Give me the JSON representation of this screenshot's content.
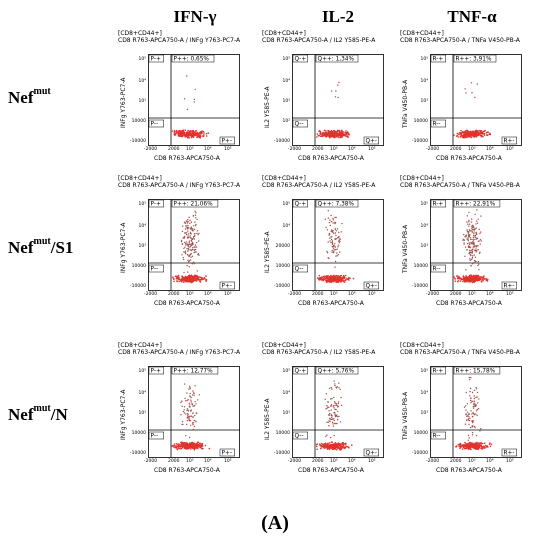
{
  "column_titles": [
    "IFN-γ",
    "IL-2",
    "TNF-α"
  ],
  "row_labels": [
    {
      "base": "Nef",
      "sup": "mut",
      "suffix": ""
    },
    {
      "base": "Nef",
      "sup": "mut",
      "suffix": "/S1"
    },
    {
      "base": "Nef",
      "sup": "mut",
      "suffix": "/N"
    }
  ],
  "figure_label": "(A)",
  "colors": {
    "dots_dense": "#e0332e",
    "dots_sparse": "#8a5a55",
    "gate": "#000000"
  },
  "chart_data": [
    {
      "type": "scatter",
      "row": "Nef mut",
      "column": "IFN-γ",
      "gate_header": "[CD8+CD44+]",
      "title": "CD8 R763-APCA750-A / INFg Y763-PC7-A",
      "xlabel": "CD8 R763-APCA750-A",
      "ylabel": "INFg Y763-PC7-A",
      "xticks": [
        "-2000",
        "2000",
        "10³",
        "10⁴",
        "10⁵"
      ],
      "yticks": [
        "10⁵",
        "10⁴",
        "10³",
        "10000",
        "-10000"
      ],
      "quadrants": {
        "upper_left": "P-+",
        "upper_right": "P++",
        "lower_left": "P--",
        "lower_right": "P+-"
      },
      "upper_right_value": "P++: 0,65%",
      "percent_positive": 0.65,
      "high_population": "low"
    },
    {
      "type": "scatter",
      "row": "Nef mut",
      "column": "IL-2",
      "gate_header": "[CD8+CD44+]",
      "title": "CD8 R763-APCA750-A / IL2 Y585-PE-A",
      "xlabel": "CD8 R763-APCA750-A",
      "ylabel": "IL2 Y585-PE-A",
      "xticks": [
        "-2000",
        "2000",
        "10³",
        "10⁴",
        "10⁵"
      ],
      "yticks": [
        "10⁵",
        "10⁴",
        "10³",
        "10²",
        "-10000"
      ],
      "quadrants": {
        "upper_left": "Q-+",
        "upper_right": "Q++",
        "lower_left": "Q--",
        "lower_right": "Q+-"
      },
      "upper_right_value": "Q++: 1,34%",
      "percent_positive": 1.34,
      "high_population": "low"
    },
    {
      "type": "scatter",
      "row": "Nef mut",
      "column": "TNF-α",
      "gate_header": "[CD8+CD44+]",
      "title": "CD8 R763-APCA750-A / TNFa V450-PB-A",
      "xlabel": "CD8 R763-APCA750-A",
      "ylabel": "TNFa V450-PB-A",
      "xticks": [
        "-2000",
        "2000",
        "10³",
        "10⁴",
        "10⁵"
      ],
      "yticks": [
        "10⁵",
        "10⁴",
        "10³",
        "10000",
        "-10000"
      ],
      "quadrants": {
        "upper_left": "R-+",
        "upper_right": "R++",
        "lower_left": "R--",
        "lower_right": "R+-"
      },
      "upper_right_value": "R++: 3,91%",
      "percent_positive": 3.91,
      "high_population": "low"
    },
    {
      "type": "scatter",
      "row": "Nef mut/S1",
      "column": "IFN-γ",
      "gate_header": "[CD8+CD44+]",
      "title": "CD8 R763-APCA750-A / INFg Y763-PC7-A",
      "xlabel": "CD8 R763-APCA750-A",
      "ylabel": "INFg Y763-PC7-A",
      "xticks": [
        "-2000",
        "2000",
        "10³",
        "10⁴",
        "10⁵"
      ],
      "yticks": [
        "10⁵",
        "10⁴",
        "10³",
        "10000",
        "-10000"
      ],
      "quadrants": {
        "upper_left": "P-+",
        "upper_right": "P++",
        "lower_left": "P--",
        "lower_right": "P+-"
      },
      "upper_right_value": "P++: 21,06%",
      "percent_positive": 21.06,
      "high_population": "high"
    },
    {
      "type": "scatter",
      "row": "Nef mut/S1",
      "column": "IL-2",
      "gate_header": "[CD8+CD44+]",
      "title": "CD8 R763-APCA750-A / IL2 Y585-PE-A",
      "xlabel": "CD8 R763-APCA750-A",
      "ylabel": "IL2 Y585-PE-A",
      "xticks": [
        "-2000",
        "2000",
        "10³",
        "10⁴",
        "10⁵"
      ],
      "yticks": [
        "10⁵",
        "10⁴",
        "20000",
        "10000",
        "-10000"
      ],
      "quadrants": {
        "upper_left": "Q-+",
        "upper_right": "Q++",
        "lower_left": "Q--",
        "lower_right": "Q+-"
      },
      "upper_right_value": "Q++: 7,38%",
      "percent_positive": 7.38,
      "high_population": "medium"
    },
    {
      "type": "scatter",
      "row": "Nef mut/S1",
      "column": "TNF-α",
      "gate_header": "[CD8+CD44+]",
      "title": "CD8 R763-APCA750-A / TNFa V450-PB-A",
      "xlabel": "CD8 R763-APCA750-A",
      "ylabel": "TNFa V450-PB-A",
      "xticks": [
        "-2000",
        "2000",
        "10³",
        "10⁴",
        "10⁵"
      ],
      "yticks": [
        "10⁵",
        "10⁴",
        "10³",
        "10000",
        "-10000"
      ],
      "quadrants": {
        "upper_left": "R-+",
        "upper_right": "R++",
        "lower_left": "R--",
        "lower_right": "R+-"
      },
      "upper_right_value": "R++: 22,91%",
      "percent_positive": 22.91,
      "high_population": "high"
    },
    {
      "type": "scatter",
      "row": "Nef mut/N",
      "column": "IFN-γ",
      "gate_header": "[CD8+CD44+]",
      "title": "CD8 R763-APCA750-A / INFg Y763-PC7-A",
      "xlabel": "CD8 R763-APCA750-A",
      "ylabel": "INFg Y763-PC7-A",
      "xticks": [
        "-2000",
        "2000",
        "10³",
        "10⁴",
        "10⁵"
      ],
      "yticks": [
        "10⁵",
        "10⁴",
        "10³",
        "10000",
        "-10000"
      ],
      "quadrants": {
        "upper_left": "P-+",
        "upper_right": "P++",
        "lower_left": "P--",
        "lower_right": "P+-"
      },
      "upper_right_value": "P++: 12,77%",
      "percent_positive": 12.77,
      "high_population": "medium"
    },
    {
      "type": "scatter",
      "row": "Nef mut/N",
      "column": "IL-2",
      "gate_header": "[CD8+CD44+]",
      "title": "CD8 R763-APCA750-A / IL2 Y585-PE-A",
      "xlabel": "CD8 R763-APCA750-A",
      "ylabel": "IL2 Y585-PE-A",
      "xticks": [
        "-2000",
        "2000",
        "10³",
        "10⁴",
        "10⁵"
      ],
      "yticks": [
        "10⁵",
        "10⁴",
        "10³",
        "10000",
        "-10000"
      ],
      "quadrants": {
        "upper_left": "Q-+",
        "upper_right": "Q++",
        "lower_left": "Q--",
        "lower_right": "Q+-"
      },
      "upper_right_value": "Q++: 5,76%",
      "percent_positive": 5.76,
      "high_population": "medium"
    },
    {
      "type": "scatter",
      "row": "Nef mut/N",
      "column": "TNF-α",
      "gate_header": "[CD8+CD44+]",
      "title": "CD8 R763-APCA750-A / TNFa V450-PB-A",
      "xlabel": "CD8 R763-APCA750-A",
      "ylabel": "TNFa V450-PB-A",
      "xticks": [
        "-2000",
        "2000",
        "10³",
        "10⁴",
        "10⁵"
      ],
      "yticks": [
        "10⁵",
        "10⁴",
        "10³",
        "10000",
        "-10000"
      ],
      "quadrants": {
        "upper_left": "R-+",
        "upper_right": "R++",
        "lower_left": "R--",
        "lower_right": "R+-"
      },
      "upper_right_value": "R++: 15,78%",
      "percent_positive": 15.78,
      "high_population": "medium"
    }
  ]
}
